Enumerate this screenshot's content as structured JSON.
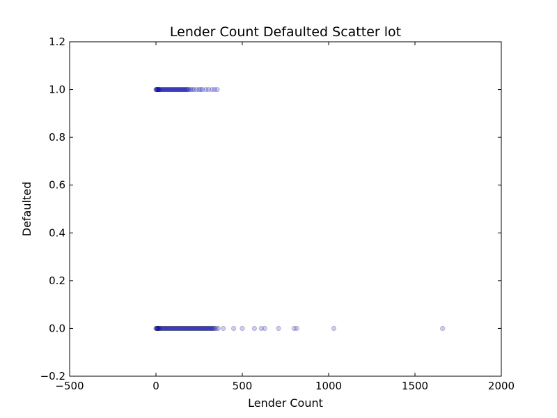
{
  "chart_data": {
    "type": "scatter",
    "title": "Lender Count Defaulted Scatter lot",
    "xlabel": "Lender Count",
    "ylabel": "Defaulted",
    "xlim": [
      -500,
      2000
    ],
    "ylim": [
      -0.2,
      1.2
    ],
    "xticks": [
      -500,
      0,
      500,
      1000,
      1500,
      2000
    ],
    "xtick_labels": [
      "−500",
      "0",
      "500",
      "1000",
      "1500",
      "2000"
    ],
    "yticks": [
      -0.2,
      0.0,
      0.2,
      0.4,
      0.6,
      0.8,
      1.0,
      1.2
    ],
    "ytick_labels": [
      "−0.2",
      "0.0",
      "0.2",
      "0.4",
      "0.6",
      "0.8",
      "1.0",
      "1.2"
    ],
    "grid": false,
    "marker_color": "#0000ff",
    "marker_alpha": 0.2,
    "series": [
      {
        "x": [
          0,
          2,
          5,
          8,
          10,
          12,
          15,
          18,
          20,
          25,
          30,
          35,
          40,
          45,
          50,
          55,
          60,
          65,
          70,
          75,
          80,
          85,
          90,
          95,
          100,
          105,
          110,
          115,
          120,
          125,
          130,
          135,
          140,
          145,
          150,
          155,
          160,
          165,
          170,
          175,
          180,
          185,
          190,
          195,
          200,
          205,
          210,
          215,
          220,
          225,
          230,
          235,
          240,
          245,
          250,
          255,
          260,
          265,
          270,
          275,
          280,
          285,
          290,
          295,
          300,
          305,
          310,
          315,
          320,
          325,
          330,
          335,
          340,
          350,
          360,
          390,
          450,
          500,
          570,
          610,
          630,
          710,
          800,
          815,
          1030,
          1660
        ],
        "y": [
          0,
          0,
          0,
          0,
          0,
          0,
          0,
          0,
          0,
          0,
          0,
          0,
          0,
          0,
          0,
          0,
          0,
          0,
          0,
          0,
          0,
          0,
          0,
          0,
          0,
          0,
          0,
          0,
          0,
          0,
          0,
          0,
          0,
          0,
          0,
          0,
          0,
          0,
          0,
          0,
          0,
          0,
          0,
          0,
          0,
          0,
          0,
          0,
          0,
          0,
          0,
          0,
          0,
          0,
          0,
          0,
          0,
          0,
          0,
          0,
          0,
          0,
          0,
          0,
          0,
          0,
          0,
          0,
          0,
          0,
          0,
          0,
          0,
          0,
          0,
          0,
          0,
          0,
          0,
          0,
          0,
          0,
          0,
          0,
          0,
          0
        ]
      },
      {
        "x": [
          0,
          2,
          5,
          8,
          10,
          12,
          15,
          18,
          20,
          25,
          30,
          35,
          40,
          45,
          50,
          55,
          60,
          65,
          70,
          75,
          80,
          85,
          90,
          95,
          100,
          105,
          110,
          115,
          120,
          125,
          130,
          135,
          140,
          145,
          150,
          155,
          160,
          165,
          170,
          175,
          180,
          185,
          190,
          200,
          210,
          220,
          235,
          250,
          260,
          270,
          290,
          305,
          325,
          340,
          355
        ],
        "y": [
          1,
          1,
          1,
          1,
          1,
          1,
          1,
          1,
          1,
          1,
          1,
          1,
          1,
          1,
          1,
          1,
          1,
          1,
          1,
          1,
          1,
          1,
          1,
          1,
          1,
          1,
          1,
          1,
          1,
          1,
          1,
          1,
          1,
          1,
          1,
          1,
          1,
          1,
          1,
          1,
          1,
          1,
          1,
          1,
          1,
          1,
          1,
          1,
          1,
          1,
          1,
          1,
          1,
          1,
          1
        ]
      }
    ]
  }
}
